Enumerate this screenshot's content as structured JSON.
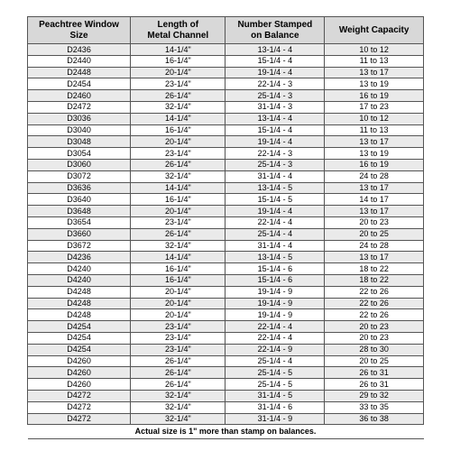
{
  "table": {
    "columns": [
      "Peachtree Window Size",
      "Length of\nMetal Channel",
      "Number Stamped\non Balance",
      "Weight Capacity"
    ],
    "rows": [
      [
        "D2436",
        "14-1/4\"",
        "13-1/4 - 4",
        "10 to 12"
      ],
      [
        "D2440",
        "16-1/4\"",
        "15-1/4 - 4",
        "11 to 13"
      ],
      [
        "D2448",
        "20-1/4\"",
        "19-1/4 - 4",
        "13 to 17"
      ],
      [
        "D2454",
        "23-1/4\"",
        "22-1/4 - 3",
        "13 to 19"
      ],
      [
        "D2460",
        "26-1/4\"",
        "25-1/4 - 3",
        "16 to 19"
      ],
      [
        "D2472",
        "32-1/4\"",
        "31-1/4 - 3",
        "17 to 23"
      ],
      [
        "D3036",
        "14-1/4\"",
        "13-1/4 - 4",
        "10 to 12"
      ],
      [
        "D3040",
        "16-1/4\"",
        "15-1/4 - 4",
        "11 to 13"
      ],
      [
        "D3048",
        "20-1/4\"",
        "19-1/4 - 4",
        "13 to 17"
      ],
      [
        "D3054",
        "23-1/4\"",
        "22-1/4 - 3",
        "13 to 19"
      ],
      [
        "D3060",
        "26-1/4\"",
        "25-1/4 - 3",
        "16 to 19"
      ],
      [
        "D3072",
        "32-1/4\"",
        "31-1/4 - 4",
        "24 to 28"
      ],
      [
        "D3636",
        "14-1/4\"",
        "13-1/4 - 5",
        "13 to 17"
      ],
      [
        "D3640",
        "16-1/4\"",
        "15-1/4 - 5",
        "14 to 17"
      ],
      [
        "D3648",
        "20-1/4\"",
        "19-1/4 - 4",
        "13 to 17"
      ],
      [
        "D3654",
        "23-1/4\"",
        "22-1/4 - 4",
        "20 to 23"
      ],
      [
        "D3660",
        "26-1/4\"",
        "25-1/4 - 4",
        "20 to 25"
      ],
      [
        "D3672",
        "32-1/4\"",
        "31-1/4 - 4",
        "24 to 28"
      ],
      [
        "D4236",
        "14-1/4\"",
        "13-1/4 - 5",
        "13 to 17"
      ],
      [
        "D4240",
        "16-1/4\"",
        "15-1/4 - 6",
        "18 to 22"
      ],
      [
        "D4240",
        "16-1/4\"",
        "15-1/4 - 6",
        "18 to 22"
      ],
      [
        "D4248",
        "20-1/4\"",
        "19-1/4 - 9",
        "22 to 26"
      ],
      [
        "D4248",
        "20-1/4\"",
        "19-1/4 - 9",
        "22 to 26"
      ],
      [
        "D4248",
        "20-1/4\"",
        "19-1/4 - 9",
        "22 to 26"
      ],
      [
        "D4254",
        "23-1/4\"",
        "22-1/4 - 4",
        "20 to 23"
      ],
      [
        "D4254",
        "23-1/4\"",
        "22-1/4 - 4",
        "20 to 23"
      ],
      [
        "D4254",
        "23-1/4\"",
        "22-1/4 - 9",
        "28 to 30"
      ],
      [
        "D4260",
        "26-1/4\"",
        "25-1/4 - 4",
        "20 to 25"
      ],
      [
        "D4260",
        "26-1/4\"",
        "25-1/4 - 5",
        "26 to 31"
      ],
      [
        "D4260",
        "26-1/4\"",
        "25-1/4 - 5",
        "26 to 31"
      ],
      [
        "D4272",
        "32-1/4\"",
        "31-1/4 - 5",
        "29 to 32"
      ],
      [
        "D4272",
        "32-1/4\"",
        "31-1/4 - 6",
        "33 to 35"
      ],
      [
        "D4272",
        "32-1/4\"",
        "31-1/4 - 9",
        "36 to 38"
      ]
    ],
    "footnote": "Actual size is 1\" more than stamp on balances.",
    "header_bg": "#d8d8d8",
    "alt_row_bg": "#eaeaea",
    "border_color": "#555555",
    "header_fontsize": 10,
    "cell_fontsize": 9
  }
}
